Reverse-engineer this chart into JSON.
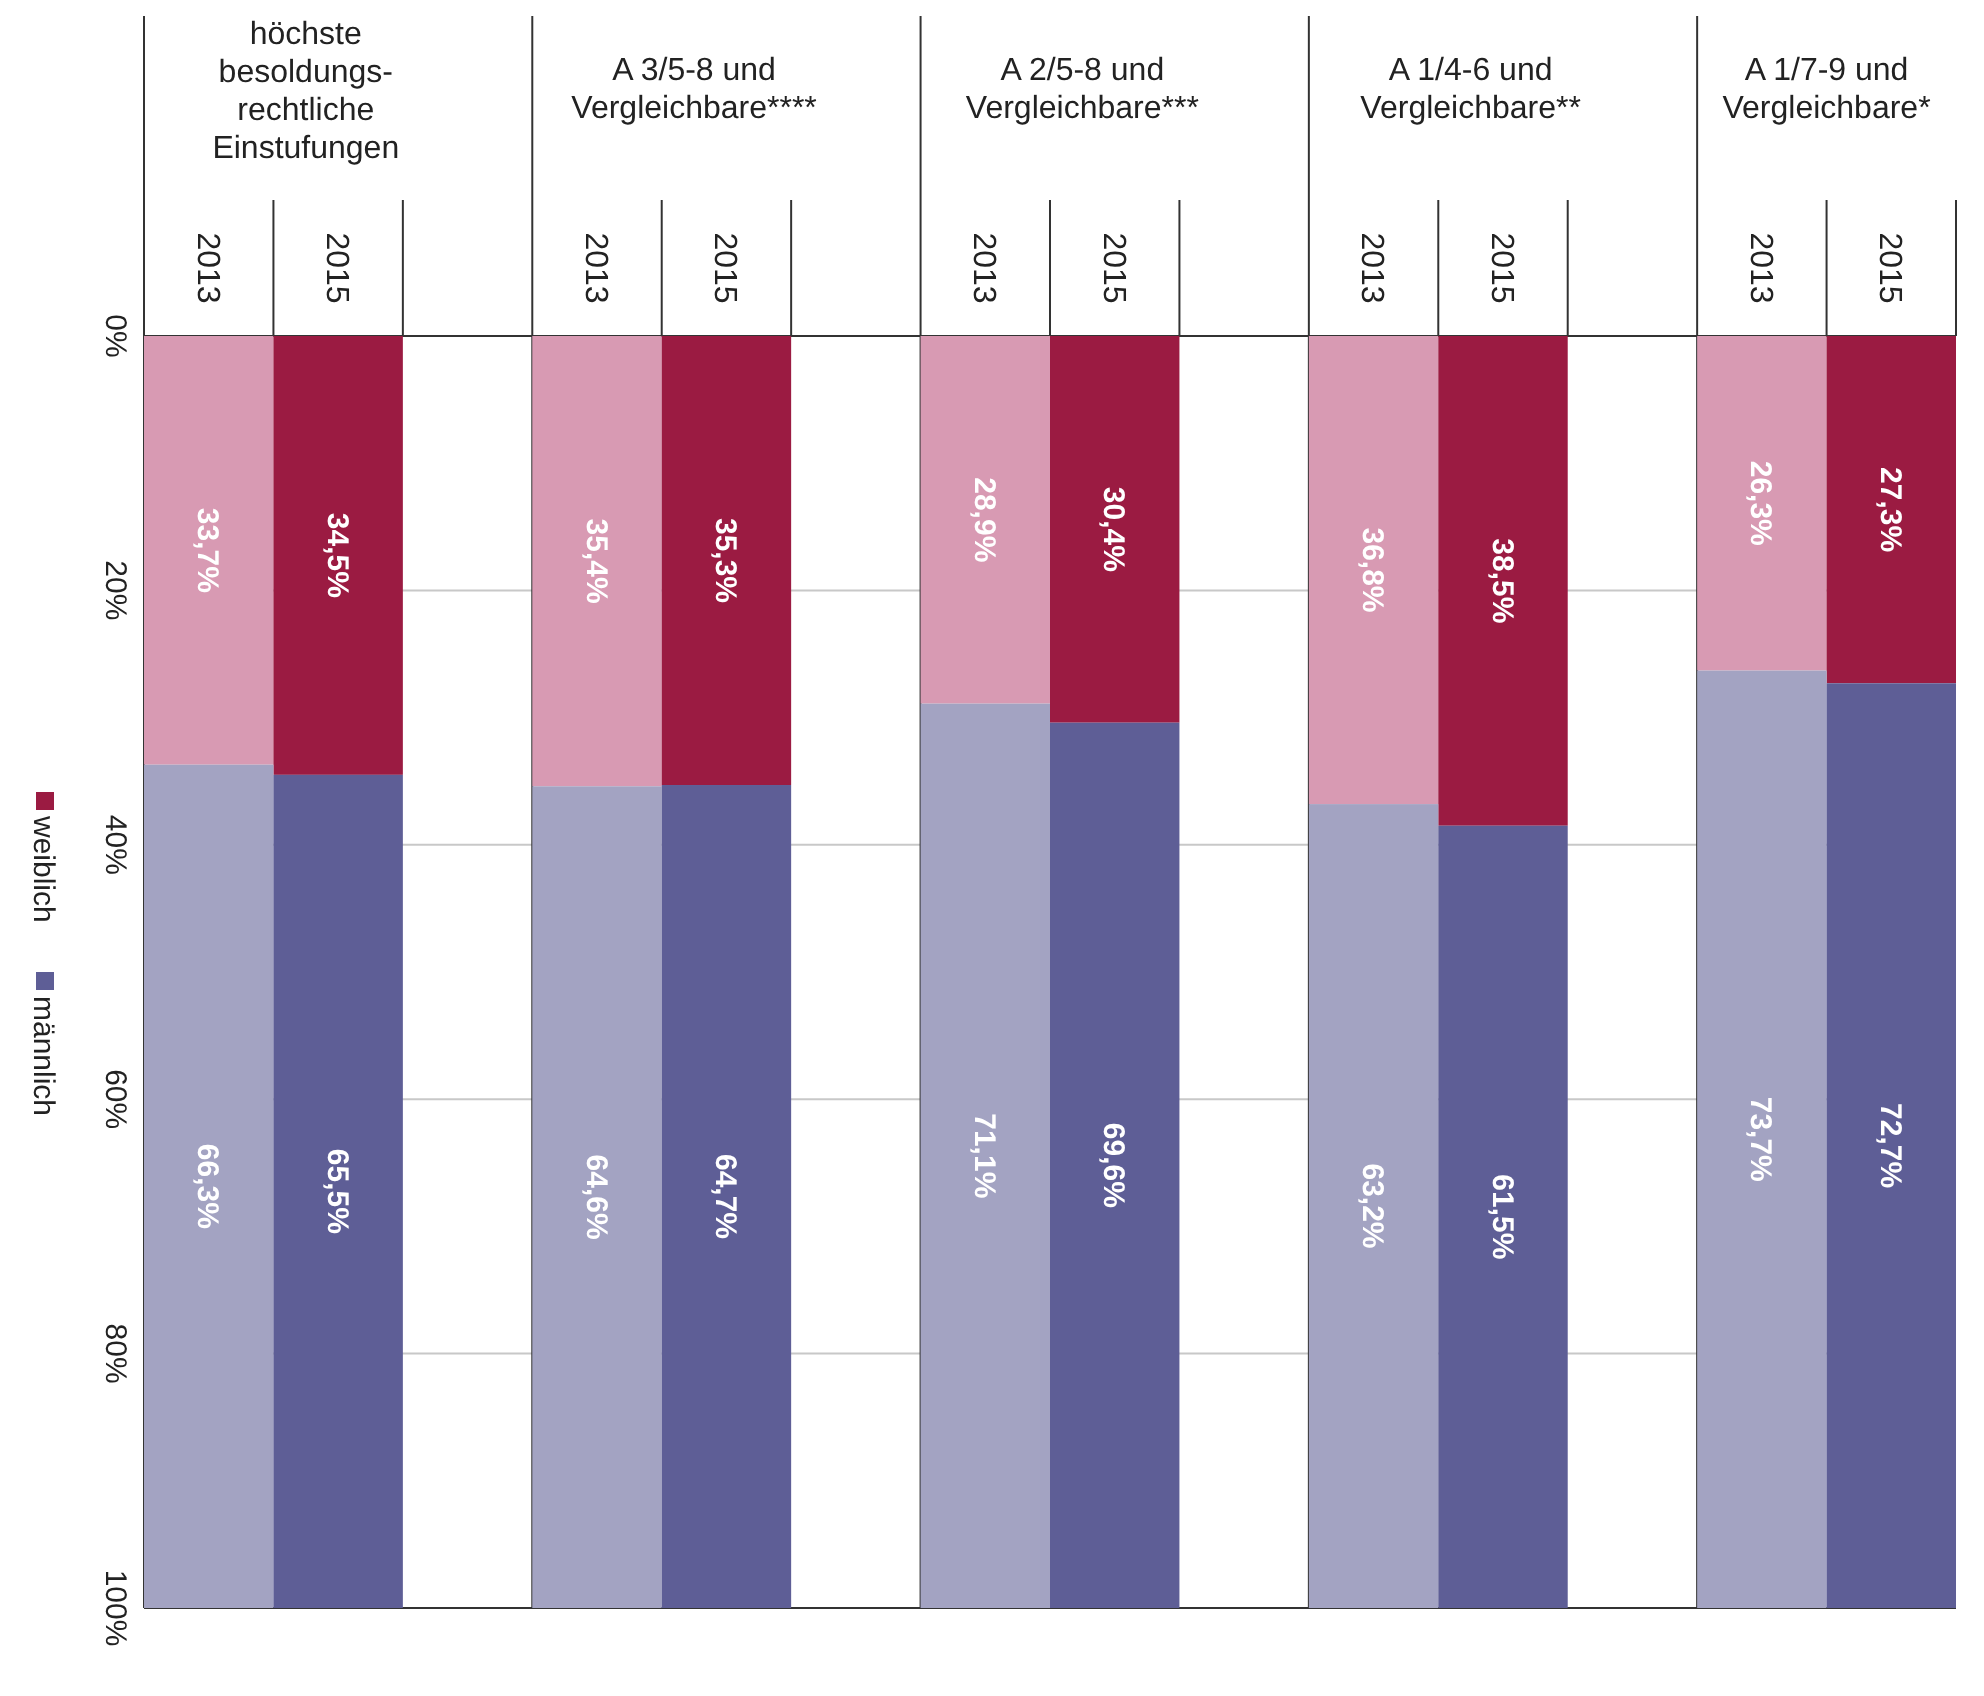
{
  "chart_data": {
    "type": "bar",
    "stacked": true,
    "categories": [
      "2013",
      "2015",
      "2013",
      "2015",
      "2013",
      "2015",
      "2013",
      "2015",
      "2013",
      "2015"
    ],
    "series": [
      {
        "name": "weiblich",
        "color": "#9b1b42",
        "colors": [
          "#d89ab3",
          "#9b1b42",
          "#d89ab3",
          "#9b1b42",
          "#d89ab3",
          "#9b1b42",
          "#d89ab3",
          "#9b1b42",
          "#d89ab3",
          "#9b1b42"
        ],
        "values": [
          33.7,
          34.5,
          35.4,
          35.3,
          28.9,
          30.4,
          36.8,
          38.5,
          26.3,
          27.3
        ],
        "value_labels": [
          "33,7%",
          "34,5%",
          "35,4%",
          "35,3%",
          "28,9%",
          "30,4%",
          "36,8%",
          "38,5%",
          "26,3%",
          "27,3%"
        ]
      },
      {
        "name": "männlich",
        "color": "#5e5e96",
        "colors": [
          "#a3a3c2",
          "#5e5e96",
          "#a3a3c2",
          "#5e5e96",
          "#a3a3c2",
          "#5e5e96",
          "#a3a3c2",
          "#5e5e96",
          "#a3a3c2",
          "#5e5e96"
        ],
        "values": [
          66.3,
          65.5,
          64.6,
          64.7,
          71.1,
          69.6,
          63.2,
          61.5,
          73.7,
          72.7
        ],
        "value_labels": [
          "66,3%",
          "65,5%",
          "64,6%",
          "64,7%",
          "71,1%",
          "69,6%",
          "63,2%",
          "61,5%",
          "73,7%",
          "72,7%"
        ]
      }
    ],
    "ylim": [
      100,
      0
    ],
    "yticks": [
      {
        "value": 0,
        "label": "0%"
      },
      {
        "value": 20,
        "label": "20%"
      },
      {
        "value": 40,
        "label": "40%"
      },
      {
        "value": 60,
        "label": "60%"
      },
      {
        "value": 80,
        "label": "80%"
      },
      {
        "value": 100,
        "label": "100%"
      }
    ],
    "grid": "y",
    "legend": "left",
    "annotations": [
      "höchste\nbesoldungs-\nrechtliche\nEinstufungen",
      "A 3/5-8 und\nVergleichbare****",
      "A 2/5-8 und\nVergleichbare***",
      "A 1/4-6 und\nVergleichbare**",
      "A 1/7-9 und\nVergleichbare*"
    ]
  }
}
